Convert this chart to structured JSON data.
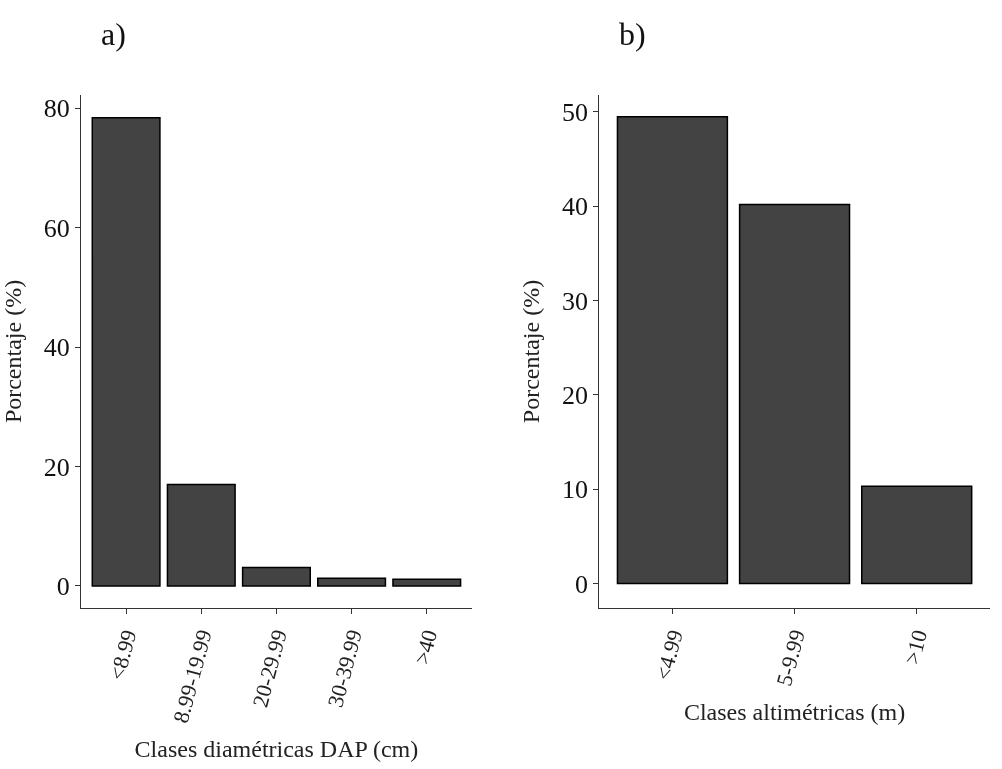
{
  "chart_data": [
    {
      "type": "bar",
      "title": "a)",
      "xlabel": "Clases diamétricas DAP (cm)",
      "ylabel": "Porcentaje (%)",
      "categories": [
        "<8.99",
        "8.99-19.99",
        "20-29.99",
        "30-39.99",
        ">40"
      ],
      "values": [
        78.4,
        17.0,
        3.1,
        1.3,
        1.1
      ],
      "color": "#434343",
      "ylim": [
        -3.7,
        82.2
      ],
      "yticks": [
        0,
        20,
        40,
        60,
        80
      ]
    },
    {
      "type": "bar",
      "title": "b)",
      "xlabel": "Clases altimétricas (m)",
      "ylabel": "Porcentaje (%)",
      "categories": [
        "<4.99",
        "5-9.99",
        ">10"
      ],
      "values": [
        49.5,
        40.2,
        10.3
      ],
      "color": "#434343",
      "ylim": [
        -2.6,
        51.8
      ],
      "yticks": [
        0,
        10,
        20,
        30,
        40,
        50
      ]
    }
  ]
}
